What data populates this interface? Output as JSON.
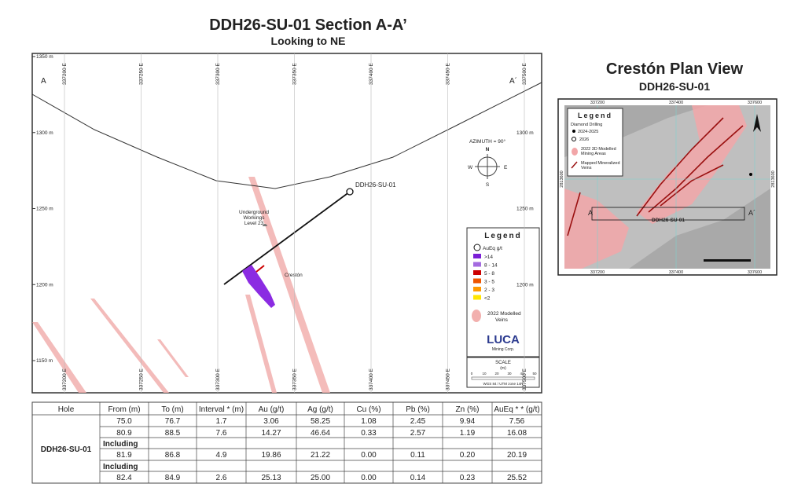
{
  "section": {
    "title": "DDH26-SU-01 Section A-A’",
    "subtitle": "Looking to NE",
    "end_labels": [
      "A",
      "A´"
    ],
    "eastings": [
      "337200 E",
      "337250 E",
      "337300 E",
      "337350 E",
      "337400 E",
      "337450 E",
      "337500 E"
    ],
    "elevations": [
      "1350 m",
      "1300 m",
      "1250 m",
      "1200 m",
      "1150 m"
    ],
    "hole_label": "DDH26-SU-01",
    "azimuth": "AZIMUTH = 90°",
    "compass": [
      "N",
      "E",
      "S",
      "W"
    ],
    "workings": [
      "Underground",
      "Workings",
      "Level 23"
    ],
    "vein_name": "Crestón",
    "legend": {
      "title": "Legend",
      "header": "AuEq g/t",
      "grades": [
        ">14",
        "8 - 14",
        "5 - 8",
        "3 - 5",
        "2 - 3",
        "<2"
      ],
      "veins": [
        "2022 Modelled",
        "Veins"
      ],
      "logo": "LUCA",
      "logo_sub": "Mining Corp."
    },
    "scale": {
      "title": "SCALE",
      "unit": "(m)",
      "ticks": [
        "0",
        "10",
        "20",
        "30",
        "40",
        "50"
      ],
      "crs": "WGS 84 / UTM zone 14N"
    }
  },
  "plan": {
    "title": "Crestón Plan View",
    "subtitle": "DDH26-SU-01",
    "eastings": [
      "337200",
      "337400",
      "337600"
    ],
    "northing": "2813600",
    "legend": {
      "title": "Legend",
      "drilling": "Diamond Drilling",
      "years": [
        "2024-2025",
        "2026"
      ],
      "areas": [
        "2022 3D Modelled",
        "Mining Areas"
      ],
      "veins": [
        "Mapped Mineralized",
        "Veins"
      ]
    },
    "end_labels": [
      "A",
      "A´"
    ],
    "hole_label": "DDH26-SU-01"
  },
  "table": {
    "header": [
      "Hole",
      "From (m)",
      "To (m)",
      "Interval * (m)",
      "Au (g/t)",
      "Ag (g/t)",
      "Cu (%)",
      "Pb (%)",
      "Zn (%)",
      "AuEq * * (g/t)"
    ],
    "hole": "DDH26-SU-01",
    "rows": [
      [
        "75.0",
        "76.7",
        "1.7",
        "3.06",
        "58.25",
        "1.08",
        "2.45",
        "9.94",
        "7.56"
      ],
      [
        "80.9",
        "88.5",
        "7.6",
        "14.27",
        "46.64",
        "0.33",
        "2.57",
        "1.19",
        "16.08"
      ],
      [
        "Including"
      ],
      [
        "81.9",
        "86.8",
        "4.9",
        "19.86",
        "21.22",
        "0.00",
        "0.11",
        "0.20",
        "20.19"
      ],
      [
        "Including"
      ],
      [
        "82.4",
        "84.9",
        "2.6",
        "25.13",
        "25.00",
        "0.00",
        "0.14",
        "0.23",
        "25.52"
      ]
    ]
  }
}
